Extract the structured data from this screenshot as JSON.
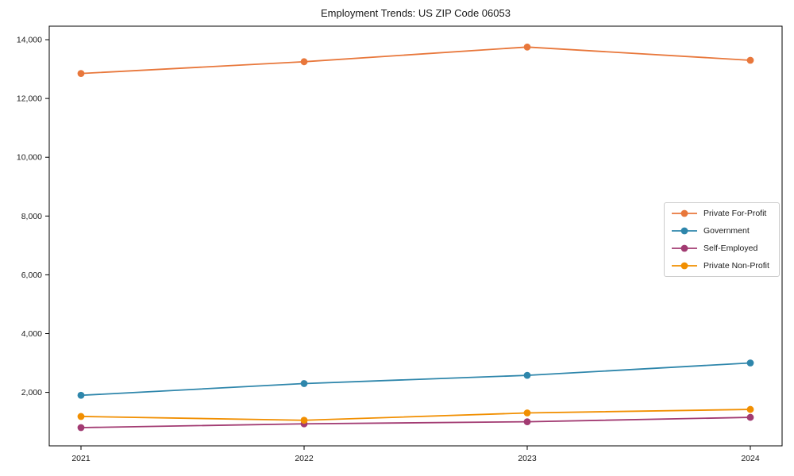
{
  "page": {
    "background_color": "#ffffff",
    "text_color": "#1a1a1a"
  },
  "chart_data": {
    "type": "line",
    "title": "Employment Trends: US ZIP Code 06053",
    "categories": [
      "2021",
      "2022",
      "2023",
      "2024"
    ],
    "series": [
      {
        "name": "Private For-Profit",
        "color": "#e8773b",
        "values": [
          12850,
          13250,
          13750,
          13300
        ]
      },
      {
        "name": "Government",
        "color": "#2e86ab",
        "values": [
          1900,
          2300,
          2580,
          3000
        ]
      },
      {
        "name": "Self-Employed",
        "color": "#a23b72",
        "values": [
          800,
          930,
          1000,
          1150
        ]
      },
      {
        "name": "Private Non-Profit",
        "color": "#f18f01",
        "values": [
          1180,
          1050,
          1300,
          1420
        ]
      }
    ],
    "xlabel": "",
    "ylabel": "",
    "ylim": [
      180,
      14460
    ],
    "yticks": [
      2000,
      4000,
      6000,
      8000,
      10000,
      12000,
      14000
    ],
    "ytick_labels": [
      "2,000",
      "4,000",
      "6,000",
      "8,000",
      "10,000",
      "12,000",
      "14,000"
    ],
    "grid": false,
    "legend_position": "center-right",
    "axis_color": "#000000",
    "legend_border_color": "#cccccc",
    "marker": "circle",
    "marker_radius": 4.4,
    "line_width": 1.8
  }
}
